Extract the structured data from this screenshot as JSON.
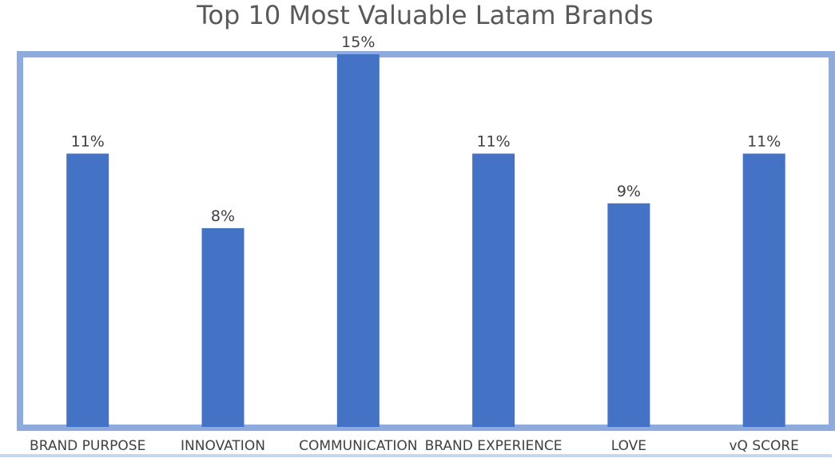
{
  "chart_data": {
    "type": "bar",
    "title": "Top 10 Most Valuable Latam Brands",
    "categories": [
      "BRAND PURPOSE",
      "INNOVATION",
      "COMMUNICATION",
      "BRAND EXPERIENCE",
      "LOVE",
      "vQ SCORE"
    ],
    "values": [
      11,
      8,
      15,
      11,
      9,
      11
    ],
    "value_labels": [
      "11%",
      "8%",
      "15%",
      "11%",
      "9%",
      "11%"
    ],
    "ylim": [
      0,
      15
    ],
    "grid": false,
    "legend": "none",
    "colors": {
      "bar": "#4472C4",
      "frame": "#8FAADC"
    }
  }
}
